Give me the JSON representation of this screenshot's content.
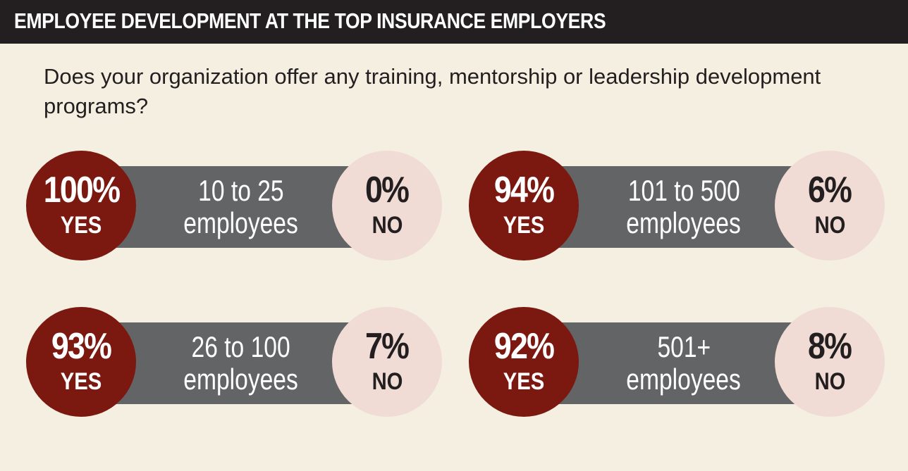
{
  "header": {
    "title": "EMPLOYEE DEVELOPMENT AT THE TOP INSURANCE EMPLOYERS"
  },
  "question": "Does your organization offer any training, mentorship or leadership development programs?",
  "colors": {
    "yes": "#7b1911",
    "no": "#f0dcd4",
    "bar": "#636466",
    "header": "#231f20",
    "background": "#f4efe0"
  },
  "chart_data": {
    "type": "table",
    "title": "EMPLOYEE DEVELOPMENT AT THE TOP INSURANCE EMPLOYERS",
    "subtitle": "Does your organization offer any training, mentorship or leadership development programs?",
    "yes_word": "YES",
    "no_word": "NO",
    "groups": [
      {
        "line1": "10 to 25",
        "line2": "employees",
        "yes": 100,
        "no": 0,
        "yes_label": "100%",
        "no_label": "0%"
      },
      {
        "line1": "101 to 500",
        "line2": "employees",
        "yes": 94,
        "no": 6,
        "yes_label": "94%",
        "no_label": "6%"
      },
      {
        "line1": "26 to 100",
        "line2": "employees",
        "yes": 93,
        "no": 7,
        "yes_label": "93%",
        "no_label": "7%"
      },
      {
        "line1": "501+",
        "line2": "employees",
        "yes": 92,
        "no": 8,
        "yes_label": "92%",
        "no_label": "8%"
      }
    ]
  }
}
